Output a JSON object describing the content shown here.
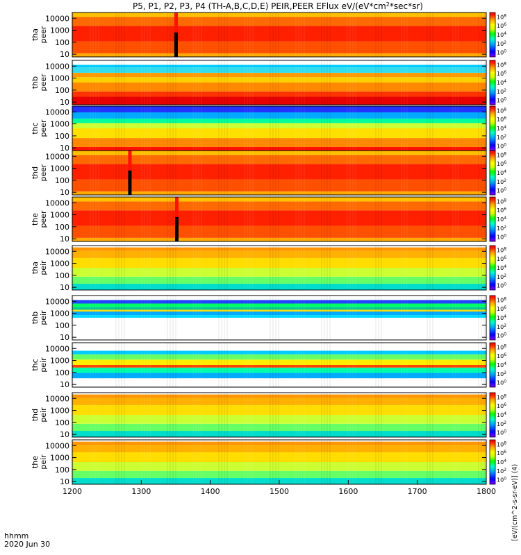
{
  "chart_data": {
    "type": "heatmap",
    "title": "P5, P1, P2, P3, P4 (TH-A,B,C,D,E) PEIR,PEER EFlux eV/(eV*cm^2*sec*sr)",
    "title_parts": {
      "main": "P5, P1, P2, P3, P4 (TH-A,B,C,D,E) PEIR,PEER EFlux eV/(eV*cm",
      "sup": "2",
      "tail": "*sec*sr)"
    },
    "xlabel": "hhmm",
    "date_label": "2020 Jun 30",
    "x_range": [
      1200,
      1800
    ],
    "x_ticks": [
      "1200",
      "1300",
      "1400",
      "1500",
      "1600",
      "1700",
      "1800"
    ],
    "y_scale": "log",
    "y_range": [
      6,
      30000
    ],
    "y_ticks": [
      "10",
      "100",
      "1000",
      "10000"
    ],
    "colorbar_label": "[eV/(cm^2-s-sr-eV)] (4)",
    "colorbar_ticks": [
      "10",
      "10",
      "10",
      "10",
      "10"
    ],
    "colorbar_exponents": [
      "0",
      "2",
      "4",
      "6",
      "8"
    ],
    "colorbar_colormap": [
      "#7f00ff",
      "#0000ff",
      "#00a0ff",
      "#00ffcc",
      "#00ff00",
      "#ccff00",
      "#ffff00",
      "#ffa000",
      "#ff2000",
      "#ff0000"
    ],
    "series": [
      {
        "name": "tha peer",
        "probe": "tha",
        "species": "peer"
      },
      {
        "name": "thb peer",
        "probe": "thb",
        "species": "peer"
      },
      {
        "name": "thc peer",
        "probe": "thc",
        "species": "peer"
      },
      {
        "name": "thd peer",
        "probe": "thd",
        "species": "peer"
      },
      {
        "name": "the peer",
        "probe": "the",
        "species": "peer"
      },
      {
        "name": "tha peir",
        "probe": "tha",
        "species": "peir"
      },
      {
        "name": "thb peir",
        "probe": "thb",
        "species": "peir"
      },
      {
        "name": "thc peir",
        "probe": "thc",
        "species": "peir"
      },
      {
        "name": "thd peir",
        "probe": "thd",
        "species": "peir"
      },
      {
        "name": "the peir",
        "probe": "the",
        "species": "peir"
      }
    ]
  }
}
